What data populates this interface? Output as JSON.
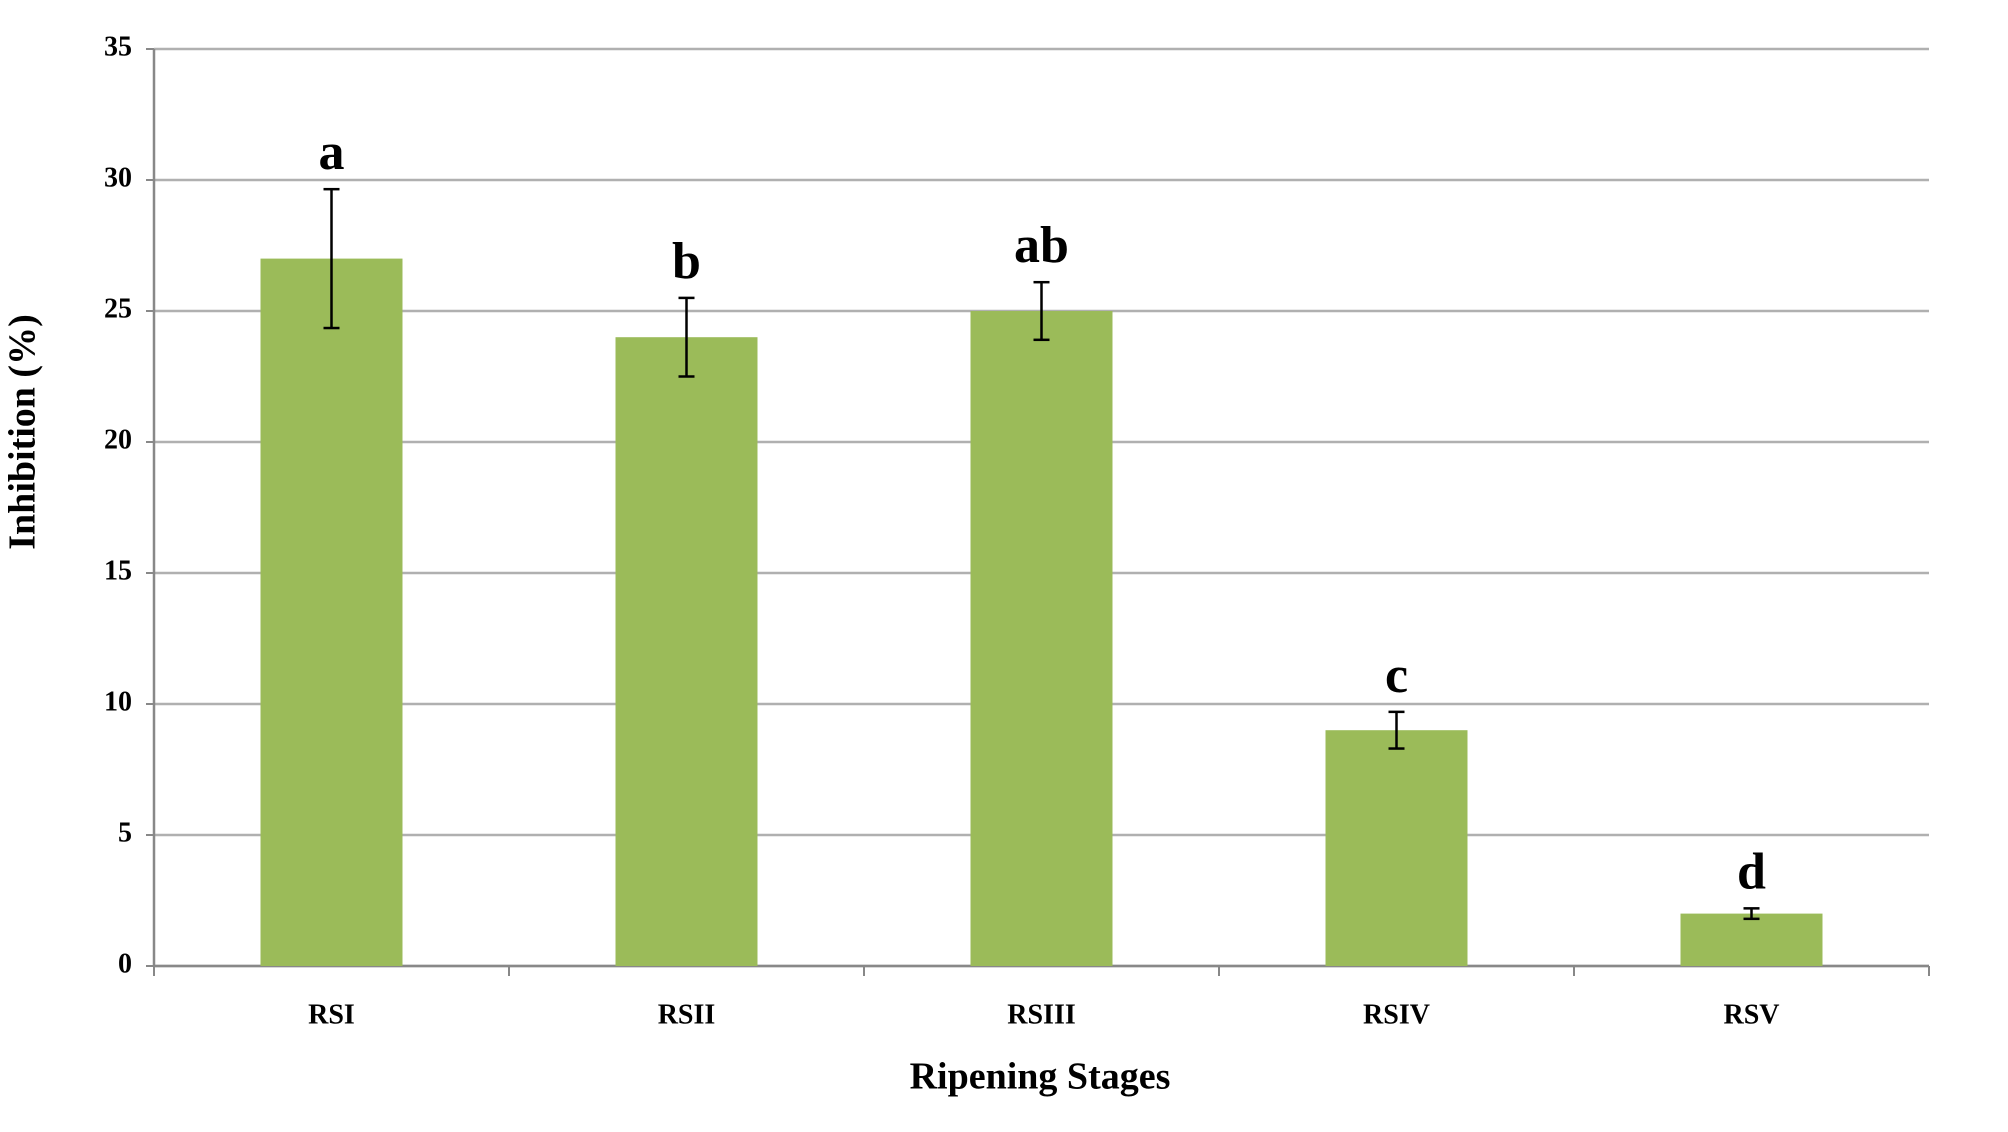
{
  "chart_data": {
    "type": "bar",
    "x_label": "Ripening Stages",
    "y_label": "Inhibition  (%)",
    "categories": [
      "RSI",
      "RSII",
      "RSIII",
      "RSIV",
      "RSV"
    ],
    "values": [
      27,
      24,
      25,
      9,
      2
    ],
    "errors": [
      2.65,
      1.5,
      1.1,
      0.7,
      0.2
    ],
    "annotations": [
      "a",
      "b",
      "ab",
      "c",
      "d"
    ],
    "color": "#9bbb59",
    "ylim": [
      0,
      35
    ],
    "yticks": [
      0,
      5,
      10,
      15,
      20,
      25,
      30,
      35
    ],
    "grid": true
  }
}
